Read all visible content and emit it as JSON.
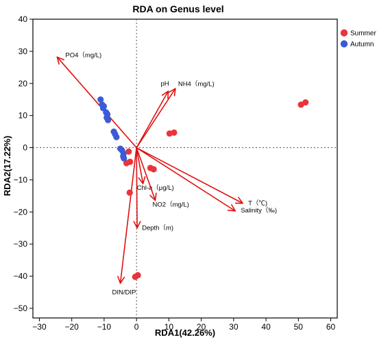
{
  "chart_data": {
    "type": "scatter",
    "title": "RDA on Genus level",
    "xlabel": "RDA1(42.26%)",
    "ylabel": "RDA2(17.22%)",
    "xlim": [
      -32,
      62
    ],
    "ylim": [
      -53,
      40
    ],
    "xticks": [
      -30,
      -20,
      -10,
      0,
      10,
      20,
      30,
      40,
      50,
      60
    ],
    "yticks": [
      40,
      30,
      20,
      10,
      0,
      -10,
      -20,
      -30,
      -40,
      -50
    ],
    "legend_position": "top-right",
    "colors": {
      "Summer": "#e8343a",
      "Autumn": "#3d5ad6",
      "arrow": "#e01010"
    },
    "series": [
      {
        "name": "Summer",
        "points": [
          [
            50.8,
            13.4
          ],
          [
            52.2,
            14.1
          ],
          [
            10.2,
            4.4
          ],
          [
            11.6,
            4.7
          ],
          [
            -2.4,
            -1.2
          ],
          [
            -3.1,
            -4.8
          ],
          [
            -2.0,
            -4.4
          ],
          [
            4.3,
            -6.3
          ],
          [
            5.3,
            -6.7
          ],
          [
            -2.1,
            -14.0
          ],
          [
            -0.4,
            -40.2
          ],
          [
            0.4,
            -39.7
          ]
        ]
      },
      {
        "name": "Autumn",
        "points": [
          [
            -11.1,
            15.0
          ],
          [
            -10.6,
            13.4
          ],
          [
            -10.1,
            12.9
          ],
          [
            -10.3,
            12.3
          ],
          [
            -9.4,
            11.0
          ],
          [
            -9.0,
            10.4
          ],
          [
            -9.2,
            9.4
          ],
          [
            -8.8,
            8.6
          ],
          [
            -7.0,
            5.0
          ],
          [
            -6.6,
            4.2
          ],
          [
            -6.2,
            3.3
          ],
          [
            -5.0,
            -0.3
          ],
          [
            -4.5,
            -0.8
          ],
          [
            -4.0,
            -1.8
          ],
          [
            -4.1,
            -2.7
          ],
          [
            -3.9,
            -3.3
          ]
        ]
      }
    ],
    "arrows": [
      {
        "name": "PO4（mg/L)",
        "x": -24.5,
        "y": 28.2
      },
      {
        "name": "pH",
        "x": 9.8,
        "y": 17.6
      },
      {
        "name": "NH4（mg/L)",
        "x": 12.0,
        "y": 18.4
      },
      {
        "name": "Chl-a（μg/L)",
        "x": 2.0,
        "y": -11.2
      },
      {
        "name": "NO2（mg/L)",
        "x": 5.8,
        "y": -16.4
      },
      {
        "name": "T（℃)",
        "x": 32.8,
        "y": -17.3
      },
      {
        "name": "Salinity（‰)",
        "x": 30.5,
        "y": -19.7
      },
      {
        "name": "Depth（m)",
        "x": 0.2,
        "y": -25.0
      },
      {
        "name": "DIN/DIP",
        "x": -5.0,
        "y": -42.2
      }
    ]
  }
}
